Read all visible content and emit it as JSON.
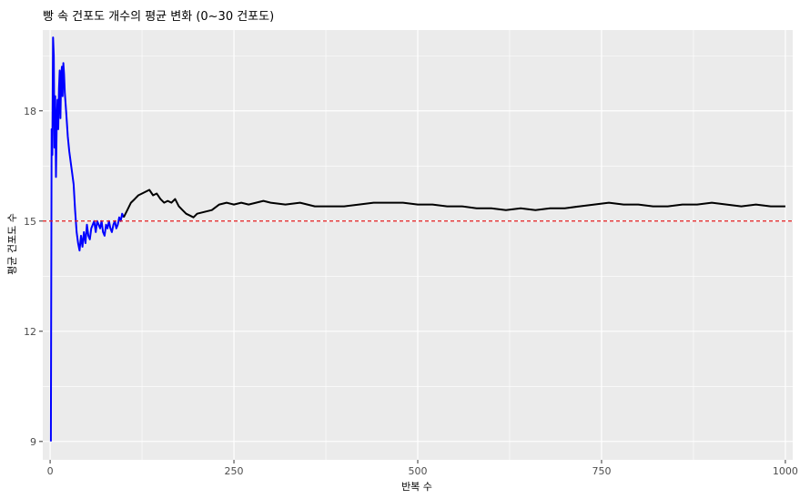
{
  "chart_data": {
    "type": "line",
    "title": "빵 속 건포도 개수의 평균 변화 (0~30 건포도)",
    "xlabel": "반복 수",
    "ylabel": "평균 건포도 수",
    "xlim": [
      -10,
      1010
    ],
    "ylim": [
      8.5,
      20.2
    ],
    "x_ticks": [
      0,
      250,
      500,
      750,
      1000
    ],
    "x_tick_labels": [
      "0",
      "250",
      "500",
      "750",
      "1000"
    ],
    "y_ticks": [
      9,
      12,
      15,
      18
    ],
    "y_tick_labels": [
      "9",
      "12",
      "15",
      "18"
    ],
    "reference_line": {
      "y": 15,
      "style": "dashed",
      "color": "#e31a1c"
    },
    "grid": true,
    "background": "#ebebeb",
    "colors": {
      "early_segment": "#0000ff",
      "late_segment": "#000000",
      "grid": "#ffffff"
    },
    "series": [
      {
        "color": "#0000ff",
        "x": [
          1,
          2,
          3,
          4,
          5,
          6,
          7,
          8,
          9,
          10,
          11,
          12,
          13,
          14,
          15,
          16,
          17,
          18,
          19,
          20,
          22,
          24,
          26,
          28,
          30,
          32,
          34,
          36,
          38,
          40,
          42,
          44,
          46,
          48,
          50,
          52,
          54,
          56,
          58,
          60,
          62,
          64,
          66,
          68,
          70,
          72,
          74,
          76,
          78,
          80,
          82,
          84,
          86,
          88,
          90,
          92,
          94,
          96,
          98,
          100
        ],
        "y": [
          9.0,
          17.5,
          16.8,
          20.0,
          19.5,
          17.0,
          18.4,
          16.2,
          17.6,
          18.3,
          17.5,
          18.6,
          19.1,
          17.8,
          18.9,
          19.2,
          18.4,
          19.3,
          19.0,
          18.5,
          17.9,
          17.3,
          16.9,
          16.6,
          16.3,
          16.0,
          15.3,
          14.7,
          14.4,
          14.2,
          14.6,
          14.3,
          14.7,
          14.4,
          14.9,
          14.6,
          14.5,
          14.8,
          14.9,
          15.0,
          14.7,
          15.0,
          14.9,
          14.8,
          15.0,
          14.7,
          14.6,
          14.9,
          14.8,
          15.0,
          14.8,
          14.7,
          14.9,
          15.0,
          14.8,
          14.9,
          15.1,
          15.0,
          15.2,
          15.1
        ]
      },
      {
        "color": "#000000",
        "x": [
          100,
          105,
          110,
          115,
          120,
          125,
          130,
          135,
          140,
          145,
          150,
          155,
          160,
          165,
          170,
          175,
          180,
          185,
          190,
          195,
          200,
          210,
          220,
          230,
          240,
          250,
          260,
          270,
          280,
          290,
          300,
          320,
          340,
          360,
          380,
          400,
          420,
          440,
          460,
          480,
          500,
          520,
          540,
          560,
          580,
          600,
          620,
          640,
          660,
          680,
          700,
          720,
          740,
          760,
          780,
          800,
          820,
          840,
          860,
          880,
          900,
          920,
          940,
          960,
          980,
          1000
        ],
        "y": [
          15.1,
          15.3,
          15.5,
          15.6,
          15.7,
          15.75,
          15.8,
          15.85,
          15.7,
          15.75,
          15.6,
          15.5,
          15.55,
          15.5,
          15.6,
          15.4,
          15.3,
          15.2,
          15.15,
          15.1,
          15.2,
          15.25,
          15.3,
          15.45,
          15.5,
          15.45,
          15.5,
          15.45,
          15.5,
          15.55,
          15.5,
          15.45,
          15.5,
          15.4,
          15.4,
          15.4,
          15.45,
          15.5,
          15.5,
          15.5,
          15.45,
          15.45,
          15.4,
          15.4,
          15.35,
          15.35,
          15.3,
          15.35,
          15.3,
          15.35,
          15.35,
          15.4,
          15.45,
          15.5,
          15.45,
          15.45,
          15.4,
          15.4,
          15.45,
          15.45,
          15.5,
          15.45,
          15.4,
          15.45,
          15.4,
          15.4
        ]
      }
    ]
  }
}
